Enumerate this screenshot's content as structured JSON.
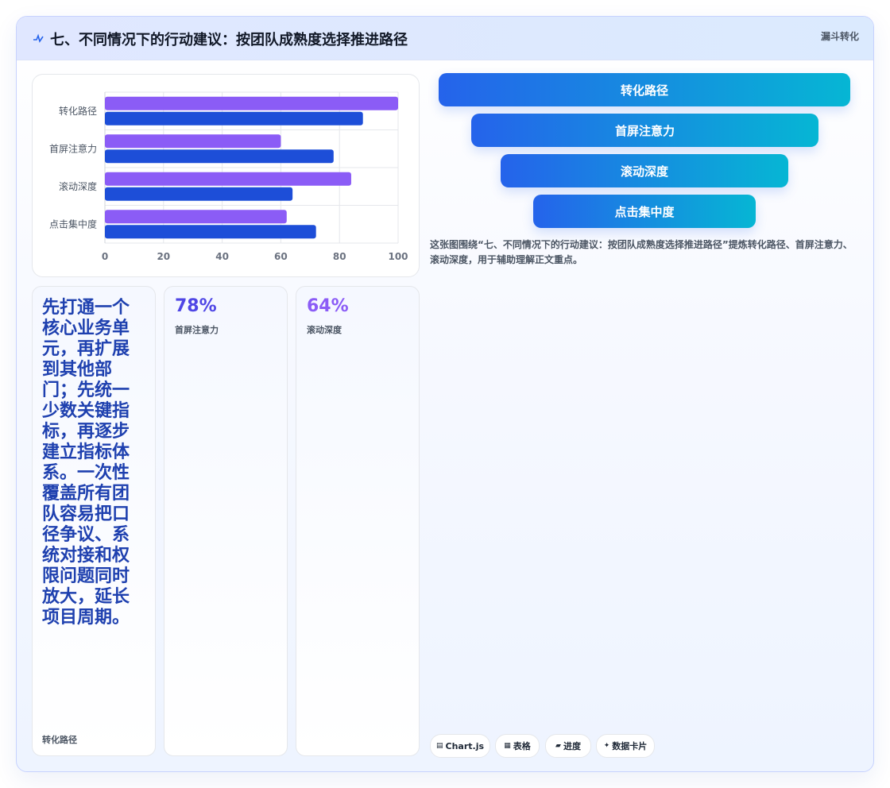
{
  "header": {
    "title": "七、不同情况下的行动建议：按团队成熟度选择推进路径",
    "tag": "漏斗转化"
  },
  "chart_data": {
    "type": "bar",
    "orientation": "horizontal",
    "categories": [
      "转化路径",
      "首屏注意力",
      "滚动深度",
      "点击集中度"
    ],
    "series": [
      {
        "color": "#8b5cf6",
        "values": [
          100,
          60,
          84,
          62
        ]
      },
      {
        "color": "#1d4ed8",
        "values": [
          88,
          78,
          64,
          72
        ]
      }
    ],
    "xlim": [
      0,
      100
    ],
    "xticks": [
      0,
      20,
      40,
      60,
      80,
      100
    ],
    "grid": true
  },
  "funnel": {
    "steps": [
      "转化路径",
      "首屏注意力",
      "滚动深度",
      "点击集中度"
    ]
  },
  "caption": "这张图围绕“七、不同情况下的行动建议：按团队成熟度选择推进路径”提炼转化路径、首屏注意力、滚动深度，用于辅助理解正文重点。",
  "text_tile": {
    "body": "先打通一个核心业务单元，再扩展到其他部门；先统一少数关键指标，再逐步建立指标体系。一次性覆盖所有团队容易把口径争议、系统对接和权限问题同时放大，延长项目周期。",
    "label": "转化路径"
  },
  "stats": [
    {
      "value": "78%",
      "label": "首屏注意力",
      "color": "#4f46e5"
    },
    {
      "value": "64%",
      "label": "滚动深度",
      "color": "#8b5cf6"
    }
  ],
  "chips": [
    {
      "icon": "▤",
      "label": "Chart.js"
    },
    {
      "icon": "▦",
      "label": "表格"
    },
    {
      "icon": "▰",
      "label": "进度"
    },
    {
      "icon": "✦",
      "label": "数据卡片"
    }
  ]
}
